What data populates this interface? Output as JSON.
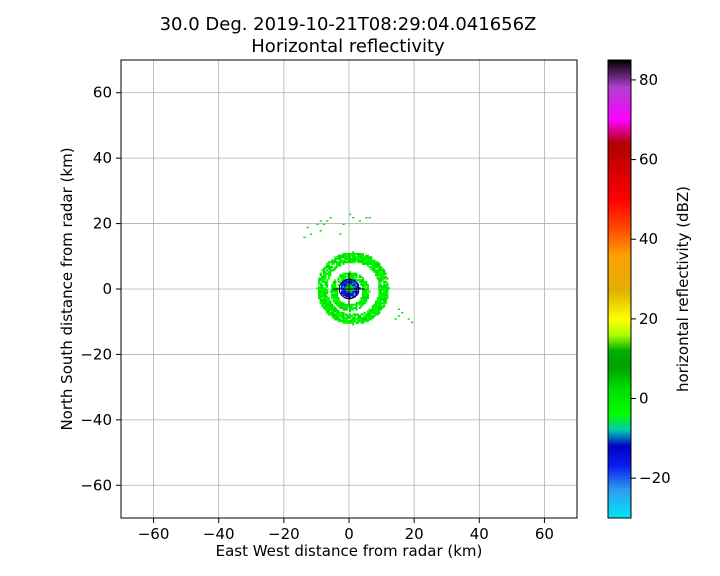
{
  "chart_data": {
    "type": "heatmap",
    "title_line1": "30.0 Deg. 2019-10-21T08:29:04.041656Z",
    "title_line2": "Horizontal reflectivity",
    "xlabel": "East West distance from radar (km)",
    "ylabel": "North South distance from radar (km)",
    "xlim": [
      -70,
      70
    ],
    "ylim": [
      -70,
      70
    ],
    "xticks": [
      -60,
      -40,
      -20,
      0,
      20,
      40,
      60
    ],
    "yticks": [
      -60,
      -40,
      -20,
      0,
      20,
      40,
      60
    ],
    "grid": true,
    "colorbar": {
      "label": "horizontal reflectivity (dBZ)",
      "range": [
        -30,
        85
      ],
      "ticks": [
        -20,
        0,
        20,
        40,
        60,
        80
      ],
      "stops": [
        {
          "v": -30,
          "c": "#00e5f5"
        },
        {
          "v": -23,
          "c": "#2f9df0"
        },
        {
          "v": -17,
          "c": "#0a1ef0"
        },
        {
          "v": -12,
          "c": "#0000c8"
        },
        {
          "v": -8,
          "c": "#00c8b0"
        },
        {
          "v": -4,
          "c": "#00ff00"
        },
        {
          "v": 2,
          "c": "#00e000"
        },
        {
          "v": 8,
          "c": "#00a000"
        },
        {
          "v": 12,
          "c": "#00b000"
        },
        {
          "v": 16,
          "c": "#b0ff00"
        },
        {
          "v": 20,
          "c": "#ffff00"
        },
        {
          "v": 27,
          "c": "#e0b000"
        },
        {
          "v": 36,
          "c": "#ffa000"
        },
        {
          "v": 42,
          "c": "#ff5000"
        },
        {
          "v": 50,
          "c": "#ff0000"
        },
        {
          "v": 58,
          "c": "#d00000"
        },
        {
          "v": 64,
          "c": "#b00000"
        },
        {
          "v": 70,
          "c": "#ff00ff"
        },
        {
          "v": 78,
          "c": "#b040d0"
        },
        {
          "v": 85,
          "c": "#000000"
        }
      ]
    },
    "echo_regions": [
      {
        "name": "inner core",
        "shape": "disc",
        "cx": 0,
        "cy": 0,
        "r": 3,
        "dbz": -15
      },
      {
        "name": "inner ring",
        "shape": "ring",
        "cx": 0,
        "cy": -1,
        "r_inner": 4,
        "r_outer": 6,
        "dbz": 2
      },
      {
        "name": "outer ring",
        "shape": "ring",
        "cx": 1,
        "cy": 0,
        "r_inner": 8,
        "r_outer": 11,
        "dbz": 2
      },
      {
        "name": "northern scatter",
        "shape": "points",
        "dbz": 5,
        "points": [
          [
            -10,
            20
          ],
          [
            -9,
            21
          ],
          [
            -7,
            21
          ],
          [
            -8,
            20
          ],
          [
            -6,
            22
          ],
          [
            -12,
            17
          ],
          [
            -14,
            16
          ],
          [
            -13,
            19
          ],
          [
            -2,
            20
          ],
          [
            0,
            23
          ],
          [
            1,
            22
          ],
          [
            3,
            21
          ],
          [
            5,
            22
          ],
          [
            6,
            22
          ],
          [
            -3,
            17
          ],
          [
            -9,
            18
          ]
        ]
      },
      {
        "name": "eastern scatter",
        "shape": "points",
        "dbz": 5,
        "points": [
          [
            15,
            -6
          ],
          [
            16,
            -7
          ],
          [
            15,
            -8
          ],
          [
            18,
            -9
          ],
          [
            19,
            -10
          ],
          [
            14,
            -9
          ]
        ]
      }
    ]
  }
}
